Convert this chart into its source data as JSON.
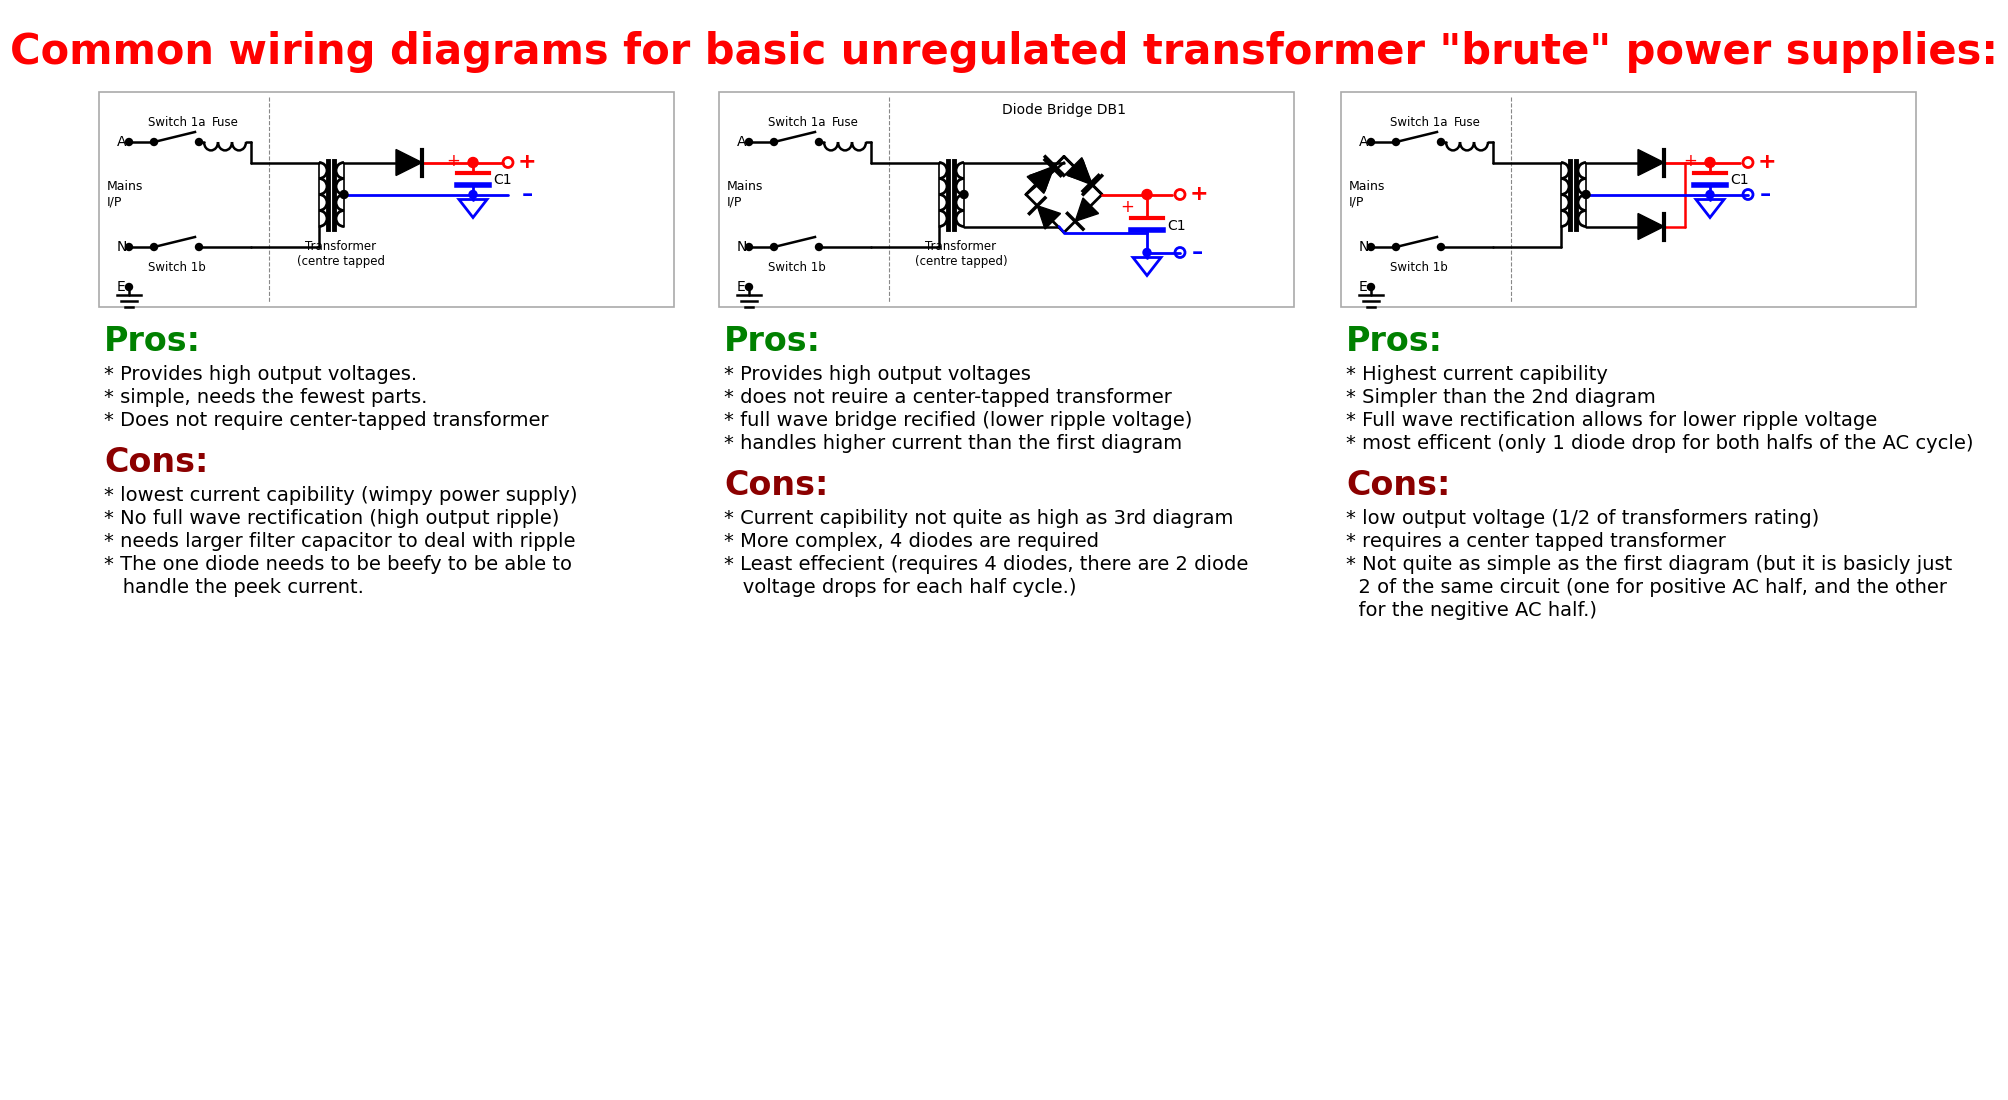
{
  "title": "Common wiring diagrams for basic unregulated transformer \"brute\" power supplies:",
  "title_color": "#FF0000",
  "title_fontsize": 30,
  "bg_color": "#FFFFFF",
  "pros_color": "#008000",
  "cons_color": "#8B0000",
  "text_color": "#000000",
  "pros_fontsize": 24,
  "cons_fontsize": 24,
  "body_fontsize": 14,
  "col1_pros": [
    "* Provides high output voltages.",
    "* simple, needs the fewest parts.",
    "* Does not require center-tapped transformer"
  ],
  "col1_cons": [
    "* lowest current capibility (wimpy power supply)",
    "* No full wave rectification (high output ripple)",
    "* needs larger filter capacitor to deal with ripple",
    "* The one diode needs to be beefy to be able to",
    "   handle the peek current."
  ],
  "col2_pros": [
    "* Provides high output voltages",
    "* does not reuire a center-tapped transformer",
    "* full wave bridge recified (lower ripple voltage)",
    "* handles higher current than the first diagram"
  ],
  "col2_cons": [
    "* Current capibility not quite as high as 3rd diagram",
    "* More complex, 4 diodes are required",
    "* Least effecient (requires 4 diodes, there are 2 diode",
    "   voltage drops for each half cycle.)"
  ],
  "col3_pros": [
    "* Highest current capibility",
    "* Simpler than the 2nd diagram",
    "* Full wave rectification allows for lower ripple voltage",
    "* most efficent (only 1 diode drop for both halfs of the AC cycle)"
  ],
  "col3_cons": [
    "* low output voltage (1/2 of transformers rating)",
    "* requires a center tapped transformer",
    "* Not quite as simple as the first diagram (but it is basicly just",
    "  2 of the same circuit (one for positive AC half, and the other",
    "  for the negitive AC half.)"
  ]
}
